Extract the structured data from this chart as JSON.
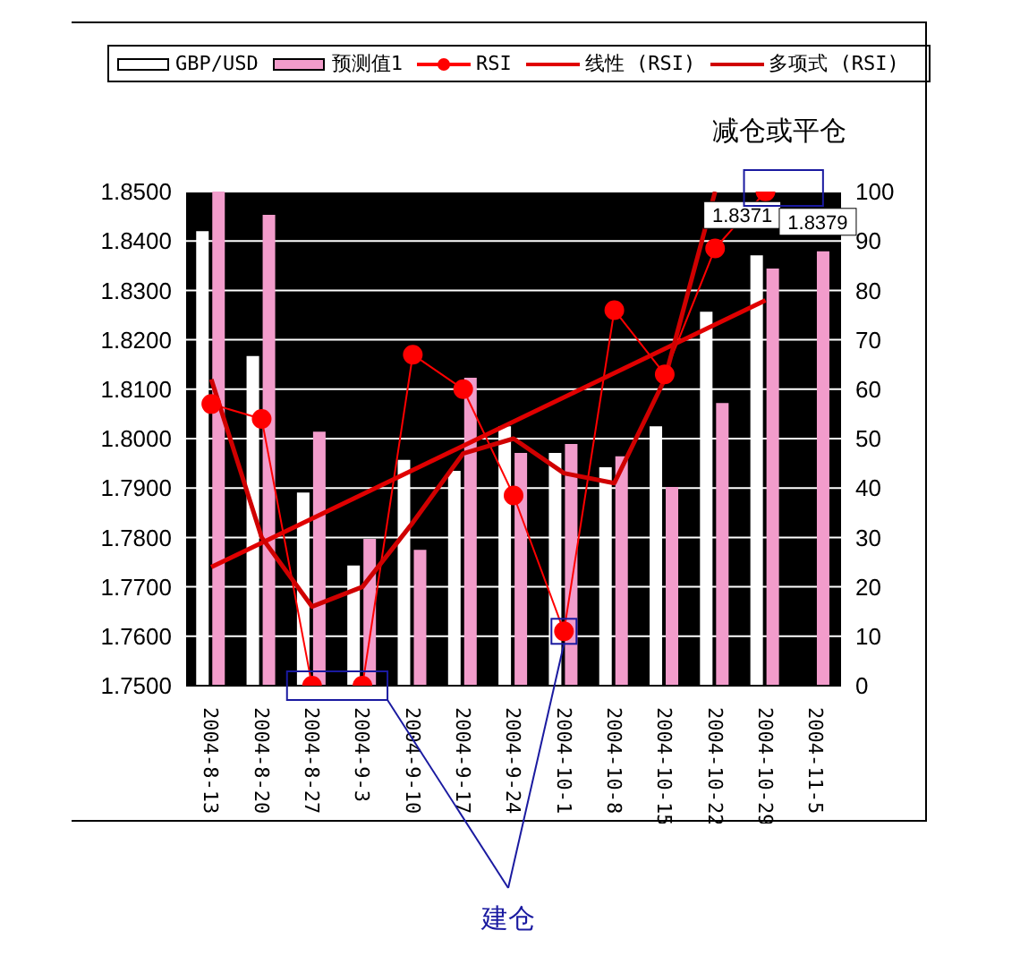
{
  "chart_data": {
    "type": "bar",
    "categories": [
      "2004-8-13",
      "2004-8-20",
      "2004-8-27",
      "2004-9-3",
      "2004-9-10",
      "2004-9-17",
      "2004-9-24",
      "2004-10-1",
      "2004-10-8",
      "2004-10-15",
      "2004-10-22",
      "2004-10-29",
      "2004-11-5"
    ],
    "series": [
      {
        "name": "GBP/USD",
        "color": "#ffffff",
        "values": [
          1.842,
          1.8167,
          1.7891,
          1.7743,
          1.7957,
          1.7935,
          1.8025,
          1.7971,
          1.7942,
          1.8025,
          1.8257,
          1.8371,
          null
        ],
        "value_labels": [
          null,
          null,
          null,
          null,
          null,
          null,
          null,
          null,
          null,
          null,
          null,
          "1.8371",
          null
        ]
      },
      {
        "name": "预测值1",
        "color": "#f29ccb",
        "values": [
          1.85,
          1.8453,
          1.8014,
          1.7797,
          1.7775,
          1.8123,
          1.7971,
          1.7989,
          1.7964,
          1.7902,
          1.8072,
          1.8344,
          1.8379
        ],
        "value_labels": [
          null,
          null,
          null,
          null,
          null,
          null,
          null,
          null,
          null,
          null,
          null,
          null,
          "1.8379"
        ]
      },
      {
        "name": "RSI",
        "type": "line",
        "axis": "y2",
        "marker": "circle",
        "color": "#ff0000",
        "values": [
          57,
          54,
          0,
          0,
          67,
          60,
          38.5,
          11,
          76,
          63,
          88.5,
          100,
          null
        ]
      },
      {
        "name": "线性 (RSI)",
        "type": "line",
        "axis": "y2",
        "marker": "none",
        "color": "#e00000",
        "values": [
          24,
          null,
          null,
          null,
          null,
          null,
          null,
          null,
          null,
          null,
          null,
          78,
          null
        ]
      },
      {
        "name": "多项式 (RSI)",
        "type": "line",
        "axis": "y2",
        "marker": "none",
        "color": "#d00000",
        "values": [
          62,
          30,
          16,
          20,
          33,
          47,
          50,
          43,
          41,
          62,
          100,
          null,
          null
        ]
      }
    ],
    "ylim": [
      1.75,
      1.85
    ],
    "yticks": [
      {
        "value": 1.75,
        "label": "1.7500"
      },
      {
        "value": 1.76,
        "label": "1.7600"
      },
      {
        "value": 1.77,
        "label": "1.7700"
      },
      {
        "value": 1.78,
        "label": "1.7800"
      },
      {
        "value": 1.79,
        "label": "1.7900"
      },
      {
        "value": 1.8,
        "label": "1.8000"
      },
      {
        "value": 1.81,
        "label": "1.8100"
      },
      {
        "value": 1.82,
        "label": "1.8200"
      },
      {
        "value": 1.83,
        "label": "1.8300"
      },
      {
        "value": 1.84,
        "label": "1.8400"
      },
      {
        "value": 1.85,
        "label": "1.8500"
      }
    ],
    "y2lim": [
      0,
      100
    ],
    "y2ticks": [
      0,
      10,
      20,
      30,
      40,
      50,
      60,
      70,
      80,
      90,
      100
    ],
    "grid": "y",
    "legend": "top",
    "line_style": "solid",
    "annotations": [
      "减仓或平仓",
      {
        "text": "建仓",
        "x": "2004-10-1"
      }
    ]
  }
}
